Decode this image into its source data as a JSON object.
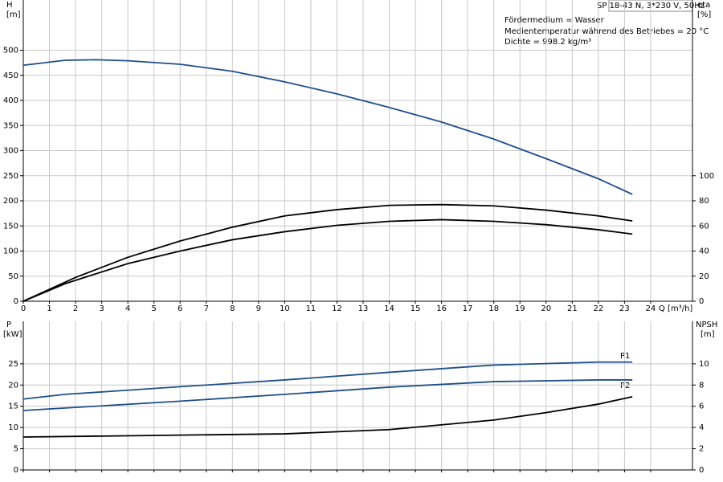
{
  "chart_data": [
    {
      "type": "line",
      "title": "SP 18-43 N, 3*230 V, 50Hz",
      "notes": [
        "Fördermedium = Wasser",
        "Medientemperatur während des Betriebes = 20 °C",
        "Dichte = 998.2 kg/m³"
      ],
      "y_label": "H",
      "y_unit": "[m]",
      "y2_label": "eta",
      "y2_unit": "[%]",
      "x_label": "Q [m³/h]",
      "xlim": [
        0,
        25.6
      ],
      "xticks": [
        0,
        1,
        2,
        3,
        4,
        5,
        6,
        7,
        8,
        9,
        10,
        11,
        12,
        13,
        14,
        15,
        16,
        17,
        18,
        19,
        20,
        21,
        22,
        23,
        24
      ],
      "ylim": [
        0,
        600
      ],
      "yticks": [
        0,
        50,
        100,
        150,
        200,
        250,
        300,
        350,
        400,
        450,
        500
      ],
      "y2lim": [
        0,
        240
      ],
      "y2ticks": [
        0,
        20,
        40,
        60,
        80,
        100
      ],
      "grid": true,
      "series": [
        {
          "color": "#1f4e8c",
          "x": [
            0,
            1.6,
            2.8,
            4,
            6,
            8,
            10,
            12,
            14,
            16,
            18,
            20,
            22,
            23.3
          ],
          "values": [
            470,
            480,
            481,
            479,
            472,
            458,
            437,
            413,
            386,
            357,
            323,
            284,
            244,
            213
          ]
        },
        {
          "color": "#000000",
          "axis": "y2",
          "x": [
            0,
            2,
            4,
            6,
            8,
            10,
            12,
            14,
            16,
            18,
            20,
            22,
            23.3
          ],
          "values": [
            0,
            19,
            35,
            48,
            59,
            68,
            73,
            76.4,
            77,
            76,
            72.6,
            68,
            64
          ]
        },
        {
          "color": "#000000",
          "axis": "y2",
          "x": [
            0,
            1.6,
            4,
            6,
            8,
            10,
            12,
            14,
            16,
            18,
            20,
            22,
            23.3
          ],
          "values": [
            0,
            14,
            30,
            40,
            49,
            55.4,
            60.5,
            63.7,
            65,
            63.7,
            61,
            57,
            53.5
          ]
        }
      ]
    },
    {
      "type": "line",
      "y_label": "P",
      "y_unit": "[kW]",
      "y2_label": "NPSH",
      "y2_unit": "[m]",
      "xlim": [
        0,
        25.6
      ],
      "ylim": [
        0,
        35
      ],
      "yticks": [
        0,
        5,
        10,
        15,
        20,
        25
      ],
      "y2lim": [
        0,
        14
      ],
      "y2ticks": [
        0,
        2,
        4,
        6,
        8,
        10
      ],
      "grid": true,
      "annotations": [
        "P1",
        "P2"
      ],
      "series": [
        {
          "color": "#1f4e8c",
          "x": [
            0,
            1.6,
            6,
            10,
            14,
            18,
            22,
            23.3
          ],
          "values": [
            16.7,
            17.8,
            19.6,
            21.2,
            23,
            24.7,
            25.4,
            25.4
          ]
        },
        {
          "color": "#1f4e8c",
          "x": [
            0,
            6,
            10,
            14,
            18,
            22,
            23.3
          ],
          "values": [
            14,
            16.2,
            17.8,
            19.5,
            20.8,
            21.2,
            21.2
          ]
        },
        {
          "color": "#000000",
          "axis": "y2",
          "x": [
            0,
            10,
            14,
            18,
            20,
            22,
            23.3
          ],
          "values": [
            3.1,
            3.4,
            3.8,
            4.7,
            5.4,
            6.2,
            6.9
          ]
        }
      ]
    }
  ]
}
